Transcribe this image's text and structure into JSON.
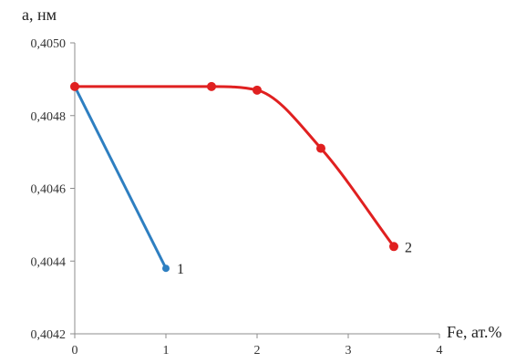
{
  "chart_data": {
    "type": "line",
    "ylabel": "a, нм",
    "xlabel": "Fe, ат.%",
    "xlim": [
      0,
      4
    ],
    "ylim": [
      0.4042,
      0.405
    ],
    "x_ticks": [
      "0",
      "1",
      "2",
      "3",
      "4"
    ],
    "y_ticks": [
      "0,4042",
      "0,4044",
      "0,4046",
      "0,4048",
      "0,4050"
    ],
    "grid": false,
    "smooth": true,
    "series": [
      {
        "label": "1",
        "color": "#2e7fc1",
        "points": [
          [
            0,
            0.40488
          ],
          [
            1,
            0.40438
          ]
        ]
      },
      {
        "label": "2",
        "color": "#e02020",
        "points": [
          [
            0,
            0.40488
          ],
          [
            1.5,
            0.40488
          ],
          [
            2,
            0.40487
          ],
          [
            2.7,
            0.40471
          ],
          [
            3.5,
            0.40444
          ]
        ]
      }
    ]
  }
}
